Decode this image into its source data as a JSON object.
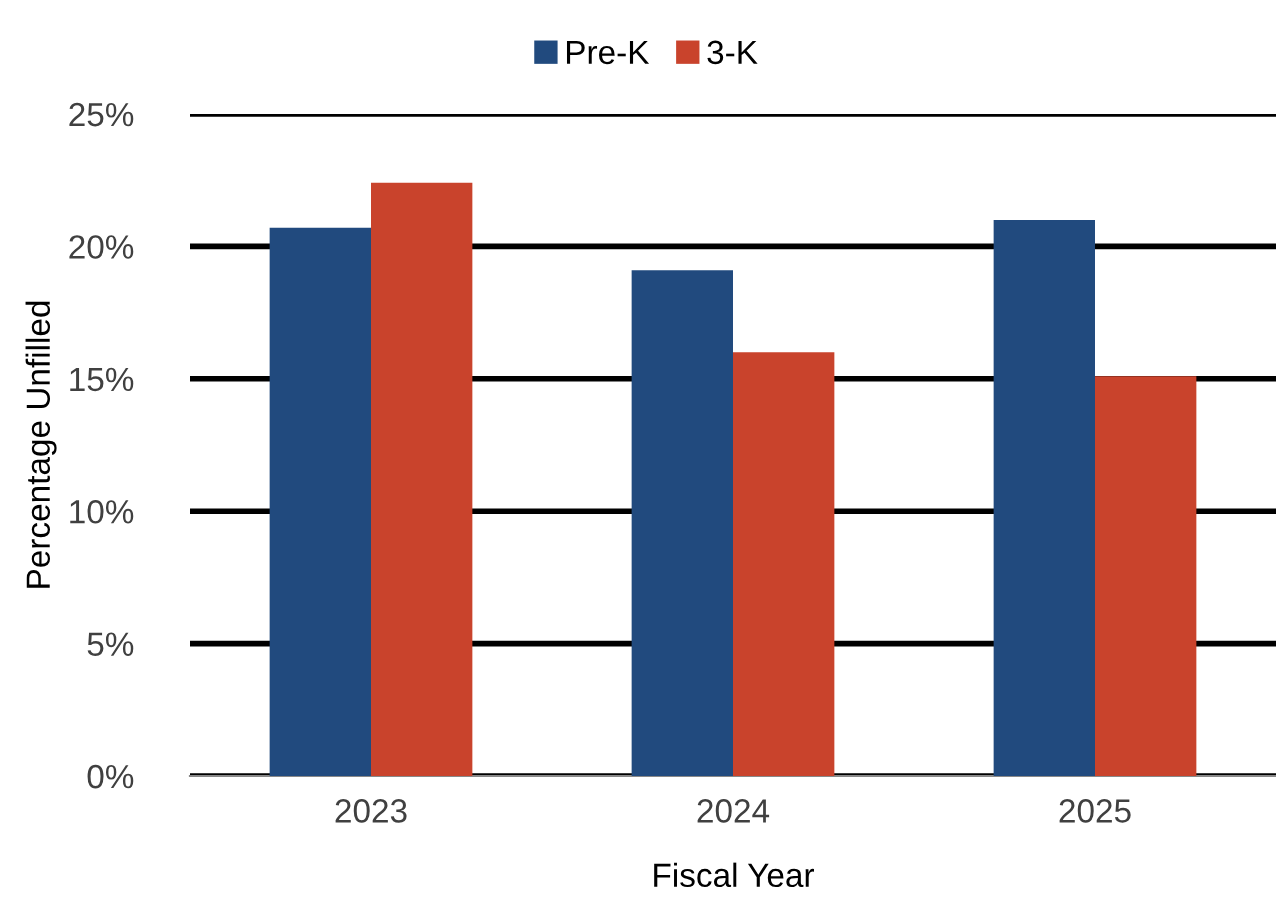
{
  "chart_data": {
    "type": "bar",
    "xlabel": "Fiscal Year",
    "ylabel": "Percentage Unfilled",
    "categories": [
      "2023",
      "2024",
      "2025"
    ],
    "series": [
      {
        "name": "Pre-K",
        "color": "#214a7e",
        "values": [
          20.7,
          19.1,
          21.0
        ]
      },
      {
        "name": "3-K",
        "color": "#c9432c",
        "values": [
          22.4,
          16.0,
          15.1
        ]
      }
    ],
    "ylim": [
      0,
      25
    ],
    "yticks": [
      {
        "value": 0,
        "label": "0%"
      },
      {
        "value": 5,
        "label": "5%"
      },
      {
        "value": 10,
        "label": "10%"
      },
      {
        "value": 15,
        "label": "15%"
      },
      {
        "value": 20,
        "label": "20%"
      },
      {
        "value": 25,
        "label": "25%"
      }
    ],
    "grid": "y",
    "legend": "top"
  }
}
